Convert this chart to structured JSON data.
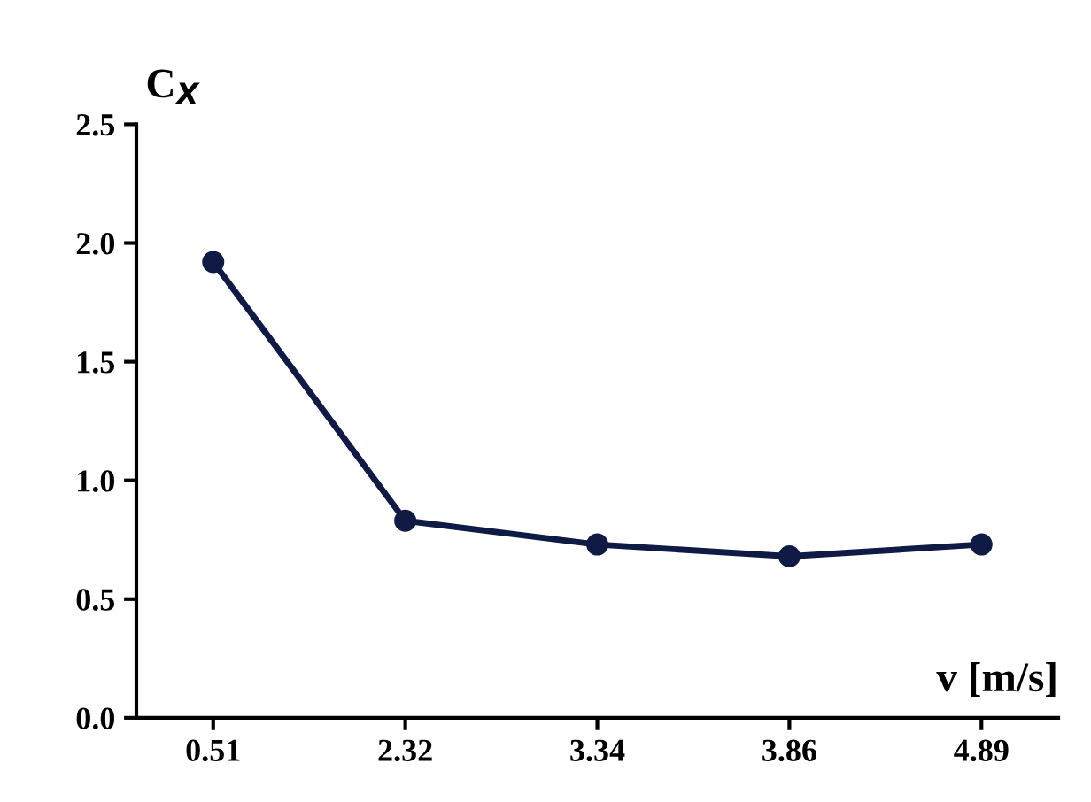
{
  "chart_data": {
    "type": "line",
    "xlabel": "v [m/s]",
    "ylabel": "C$_{X}$",
    "categories": [
      "0.51",
      "2.32",
      "3.34",
      "3.86",
      "4.89"
    ],
    "series": [
      {
        "color": "#0f1a45",
        "values": [
          1.92,
          0.83,
          0.73,
          0.68,
          0.73
        ]
      }
    ],
    "ylim": [
      0,
      2.5
    ],
    "yticks": [
      {
        "value": 0,
        "label": "0.0"
      },
      0.5,
      {
        "value": 1,
        "label": "1.0"
      },
      1.5,
      {
        "value": 2,
        "label": "2.0"
      },
      2.5
    ],
    "marker": "circle",
    "line_style": "solid",
    "grid": false,
    "legend": false
  }
}
